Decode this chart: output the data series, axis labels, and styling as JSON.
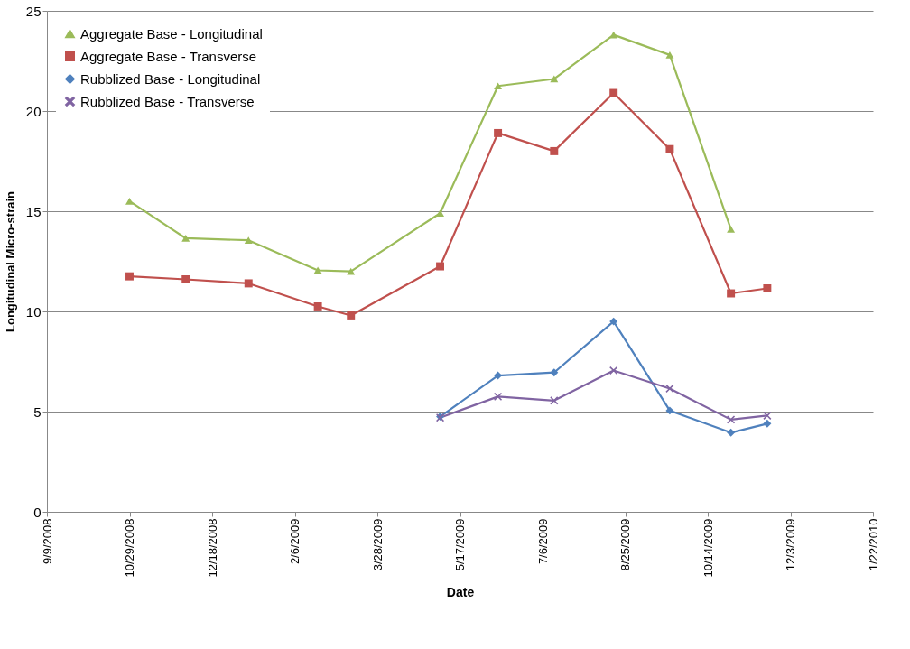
{
  "chart_data": {
    "type": "line",
    "xlabel": "Date",
    "ylabel": "Longitudinal Micro-strain",
    "xlim": [
      "2008-09-09",
      "2010-01-22"
    ],
    "xticks": [
      {
        "value": "2008-09-09",
        "label": "9/9/2008"
      },
      {
        "value": "2008-10-29",
        "label": "10/29/2008"
      },
      {
        "value": "2008-12-18",
        "label": "12/18/2008"
      },
      {
        "value": "2009-02-06",
        "label": "2/6/2009"
      },
      {
        "value": "2009-03-28",
        "label": "3/28/2009"
      },
      {
        "value": "2009-05-17",
        "label": "5/17/2009"
      },
      {
        "value": "2009-07-06",
        "label": "7/6/2009"
      },
      {
        "value": "2009-08-25",
        "label": "8/25/2009"
      },
      {
        "value": "2009-10-14",
        "label": "10/14/2009"
      },
      {
        "value": "2009-12-03",
        "label": "12/3/2009"
      },
      {
        "value": "2010-01-22",
        "label": "1/22/2010"
      }
    ],
    "ylim": [
      0,
      25
    ],
    "yticks": [
      0,
      5,
      10,
      15,
      20,
      25
    ],
    "grid": "y",
    "legend": "top left",
    "series": [
      {
        "name": "Aggregate Base - Longitudinal",
        "color": "#9bbb59",
        "marker": "triangle",
        "x": [
          "2008-10-29",
          "2008-12-02",
          "2009-01-09",
          "2009-02-20",
          "2009-03-12",
          "2009-05-05",
          "2009-06-09",
          "2009-07-13",
          "2009-08-18",
          "2009-09-21",
          "2009-10-28"
        ],
        "values": [
          15.5,
          13.65,
          13.55,
          12.05,
          12.0,
          14.9,
          21.25,
          21.6,
          23.8,
          22.8,
          14.1
        ]
      },
      {
        "name": "Aggregate Base - Transverse",
        "color": "#c0504d",
        "marker": "square",
        "x": [
          "2008-10-29",
          "2008-12-02",
          "2009-01-09",
          "2009-02-20",
          "2009-03-12",
          "2009-05-05",
          "2009-06-09",
          "2009-07-13",
          "2009-08-18",
          "2009-09-21",
          "2009-10-28",
          "2009-11-19"
        ],
        "values": [
          11.75,
          11.6,
          11.4,
          10.25,
          9.8,
          12.25,
          18.9,
          18.0,
          20.9,
          18.1,
          10.9,
          11.15
        ]
      },
      {
        "name": "Rubblized Base - Longitudinal",
        "color": "#4f81bd",
        "marker": "diamond",
        "x": [
          "2009-05-05",
          "2009-06-09",
          "2009-07-13",
          "2009-08-18",
          "2009-09-21",
          "2009-10-28",
          "2009-11-19"
        ],
        "values": [
          4.75,
          6.8,
          6.95,
          9.5,
          5.05,
          3.95,
          4.4
        ]
      },
      {
        "name": "Rubblized Base - Transverse",
        "color": "#8064a2",
        "marker": "cross",
        "x": [
          "2009-05-05",
          "2009-06-09",
          "2009-07-13",
          "2009-08-18",
          "2009-09-21",
          "2009-10-28",
          "2009-11-19"
        ],
        "values": [
          4.7,
          5.75,
          5.55,
          7.05,
          6.15,
          4.6,
          4.8
        ]
      }
    ]
  }
}
